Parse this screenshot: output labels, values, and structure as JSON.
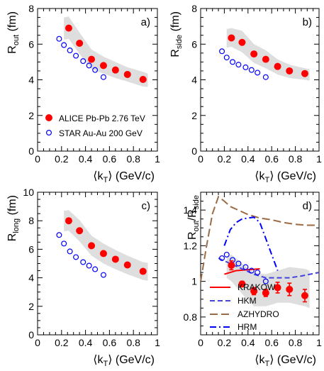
{
  "chart_data": [
    {
      "type": "scatter",
      "panel_label": "a)",
      "ylabel_main": "R",
      "ylabel_sub": "out",
      "ylabel_unit": "(fm)",
      "xlabel_prefix": "⟨k",
      "xlabel_sub": "T",
      "xlabel_suffix": "⟩ (GeV/c)",
      "xlim": [
        0,
        1
      ],
      "ylim": [
        0,
        8
      ],
      "xticks": [
        "0",
        "0.2",
        "0.4",
        "0.6",
        "0.8",
        "1"
      ],
      "yticks": [
        "0",
        "2",
        "4",
        "6",
        "8"
      ],
      "legend": {
        "placement": "bottom-left",
        "entries": [
          "ALICE Pb-Pb 2.76 TeV",
          "STAR Au-Au 200 GeV"
        ]
      },
      "series": [
        {
          "name": "ALICE Pb-Pb 2.76 TeV",
          "style": "filled-circle",
          "color": "#ff0000",
          "x": [
            0.26,
            0.35,
            0.45,
            0.55,
            0.65,
            0.75,
            0.88
          ],
          "y": [
            6.9,
            6.05,
            5.15,
            4.8,
            4.55,
            4.3,
            4.02
          ]
        },
        {
          "name": "STAR Au-Au 200 GeV",
          "style": "open-circle",
          "color": "#0000ff",
          "x": [
            0.18,
            0.22,
            0.27,
            0.32,
            0.38,
            0.43,
            0.48,
            0.55
          ],
          "y": [
            6.3,
            5.95,
            5.65,
            5.35,
            5.05,
            4.8,
            4.55,
            4.15
          ]
        }
      ],
      "band": {
        "color": "#dedede",
        "x": [
          0.22,
          0.26,
          0.35,
          0.45,
          0.55,
          0.65,
          0.75,
          0.88,
          0.92
        ],
        "upper": [
          7.5,
          7.55,
          6.65,
          5.7,
          5.3,
          5.0,
          4.7,
          4.45,
          4.35
        ],
        "lower": [
          6.25,
          6.3,
          5.45,
          4.6,
          4.35,
          4.1,
          3.9,
          3.62,
          3.6
        ]
      }
    },
    {
      "type": "scatter",
      "panel_label": "b)",
      "ylabel_main": "R",
      "ylabel_sub": "side",
      "ylabel_unit": "(fm)",
      "xlabel_prefix": "⟨k",
      "xlabel_sub": "T",
      "xlabel_suffix": "⟩ (GeV/c)",
      "xlim": [
        0,
        1
      ],
      "ylim": [
        0,
        8
      ],
      "xticks": [
        "0",
        "0.2",
        "0.4",
        "0.6",
        "0.8",
        "1"
      ],
      "yticks": [
        "0",
        "2",
        "4",
        "6",
        "8"
      ],
      "series": [
        {
          "name": "ALICE Pb-Pb 2.76 TeV",
          "style": "filled-circle",
          "color": "#ff0000",
          "x": [
            0.26,
            0.35,
            0.45,
            0.55,
            0.65,
            0.75,
            0.88
          ],
          "y": [
            6.35,
            6.1,
            5.45,
            5.15,
            4.75,
            4.5,
            4.35
          ]
        },
        {
          "name": "STAR Au-Au 200 GeV",
          "style": "open-circle",
          "color": "#0000ff",
          "x": [
            0.18,
            0.22,
            0.27,
            0.32,
            0.38,
            0.43,
            0.48,
            0.55
          ],
          "y": [
            5.6,
            5.25,
            5.0,
            4.85,
            4.7,
            4.55,
            4.4,
            4.15
          ]
        }
      ],
      "band": {
        "color": "#dedede",
        "x": [
          0.22,
          0.26,
          0.35,
          0.45,
          0.55,
          0.65,
          0.75,
          0.88,
          0.92
        ],
        "upper": [
          6.85,
          6.9,
          6.75,
          6.0,
          5.65,
          5.15,
          4.85,
          4.65,
          4.6
        ],
        "lower": [
          5.8,
          5.85,
          5.55,
          4.95,
          4.65,
          4.3,
          4.1,
          4.0,
          3.95
        ]
      }
    },
    {
      "type": "scatter",
      "panel_label": "c)",
      "ylabel_main": "R",
      "ylabel_sub": "long",
      "ylabel_unit": "(fm)",
      "xlabel_prefix": "⟨k",
      "xlabel_sub": "T",
      "xlabel_suffix": "⟩ (GeV/c)",
      "xlim": [
        0,
        1
      ],
      "ylim": [
        0,
        10
      ],
      "xticks": [
        "0",
        "0.2",
        "0.4",
        "0.6",
        "0.8",
        "1"
      ],
      "yticks": [
        "0",
        "2",
        "4",
        "6",
        "8",
        "10"
      ],
      "series": [
        {
          "name": "ALICE Pb-Pb 2.76 TeV",
          "style": "filled-circle",
          "color": "#ff0000",
          "x": [
            0.26,
            0.35,
            0.45,
            0.55,
            0.65,
            0.75,
            0.88
          ],
          "y": [
            8.0,
            7.3,
            6.25,
            5.7,
            5.3,
            4.9,
            4.45
          ]
        },
        {
          "name": "STAR Au-Au 200 GeV",
          "style": "open-circle",
          "color": "#0000ff",
          "x": [
            0.18,
            0.22,
            0.27,
            0.32,
            0.38,
            0.43,
            0.48,
            0.55
          ],
          "y": [
            7.0,
            6.4,
            5.85,
            5.45,
            5.1,
            4.85,
            4.6,
            4.2
          ]
        }
      ],
      "band": {
        "color": "#dedede",
        "x": [
          0.22,
          0.26,
          0.35,
          0.45,
          0.55,
          0.65,
          0.75,
          0.88,
          0.92
        ],
        "upper": [
          8.7,
          8.75,
          8.05,
          6.95,
          6.4,
          5.95,
          5.55,
          5.1,
          5.05
        ],
        "lower": [
          7.25,
          7.3,
          6.55,
          5.55,
          5.0,
          4.6,
          4.25,
          3.85,
          3.8
        ]
      }
    },
    {
      "type": "line",
      "panel_label": "d)",
      "ylabel_main": "R",
      "ylabel_sub": "out",
      "ylabel_mid": "/R",
      "ylabel_sub2": "side",
      "xlabel_prefix": "⟨k",
      "xlabel_sub": "T",
      "xlabel_suffix": "⟩ (GeV/c)",
      "xlim": [
        0,
        1
      ],
      "ylim": [
        0.7,
        1.5
      ],
      "xticks": [
        "0",
        "0.2",
        "0.4",
        "0.6",
        "0.8",
        "1"
      ],
      "yticks": [
        "0.8",
        "1",
        "1.2",
        "1.4"
      ],
      "legend": {
        "placement": "bottom-left",
        "entries": [
          "KRAKOW",
          "HKM",
          "AZHYDRO",
          "HRM"
        ]
      },
      "points": [
        {
          "name": "ALICE Pb-Pb 2.76 TeV",
          "color": "#ff0000",
          "x": [
            0.26,
            0.35,
            0.45,
            0.55,
            0.65,
            0.75,
            0.88
          ],
          "y": [
            1.09,
            0.985,
            0.945,
            0.935,
            0.965,
            0.955,
            0.92
          ],
          "err": [
            0.025,
            0.015,
            0.02,
            0.02,
            0.03,
            0.035,
            0.035
          ]
        },
        {
          "name": "STAR Au-Au 200 GeV",
          "color": "#0000ff",
          "x": [
            0.18,
            0.22,
            0.27,
            0.32,
            0.38,
            0.43,
            0.48,
            0.55
          ],
          "y": [
            1.13,
            1.15,
            1.12,
            1.1,
            1.08,
            1.06,
            1.05,
            1.0
          ]
        }
      ],
      "band": {
        "color": "#dedede",
        "x": [
          0.22,
          0.26,
          0.35,
          0.45,
          0.55,
          0.65,
          0.75,
          0.88,
          0.92
        ],
        "upper": [
          1.14,
          1.15,
          1.1,
          1.05,
          1.04,
          1.06,
          1.08,
          1.07,
          1.06
        ],
        "lower": [
          1.02,
          1.0,
          0.93,
          0.86,
          0.86,
          0.88,
          0.88,
          0.86,
          0.85
        ]
      },
      "series": [
        {
          "name": "KRAKOW",
          "color": "#ff0000",
          "dash": "solid",
          "x": [
            0.2,
            0.3,
            0.4,
            0.5
          ],
          "y": [
            1.04,
            1.06,
            1.065,
            1.07
          ]
        },
        {
          "name": "HKM",
          "color": "#4444dd",
          "dash": "dashed",
          "x": [
            0.15,
            0.25,
            0.35,
            0.45,
            0.55,
            0.65,
            0.75,
            0.85,
            1.0
          ],
          "y": [
            1.13,
            1.1,
            1.07,
            1.04,
            1.02,
            1.02,
            1.02,
            1.03,
            1.05
          ]
        },
        {
          "name": "AZHYDRO",
          "color": "#9b6b45",
          "dash": "longdash",
          "x": [
            0.0,
            0.05,
            0.1,
            0.15,
            0.2,
            0.25,
            0.3,
            0.4,
            0.5,
            0.6,
            0.7,
            0.8,
            0.9,
            1.0
          ],
          "y": [
            1.0,
            1.2,
            1.38,
            1.475,
            1.45,
            1.42,
            1.405,
            1.375,
            1.355,
            1.345,
            1.33,
            1.32,
            1.315,
            1.315
          ]
        },
        {
          "name": "HRM",
          "color": "#0000ff",
          "dash": "dashdot",
          "x": [
            0.2,
            0.25,
            0.3,
            0.35,
            0.4,
            0.45,
            0.5,
            0.55,
            0.6,
            0.65
          ],
          "y": [
            1.2,
            1.29,
            1.33,
            1.35,
            1.355,
            1.36,
            1.33,
            1.24,
            1.15,
            1.06
          ]
        }
      ]
    }
  ]
}
